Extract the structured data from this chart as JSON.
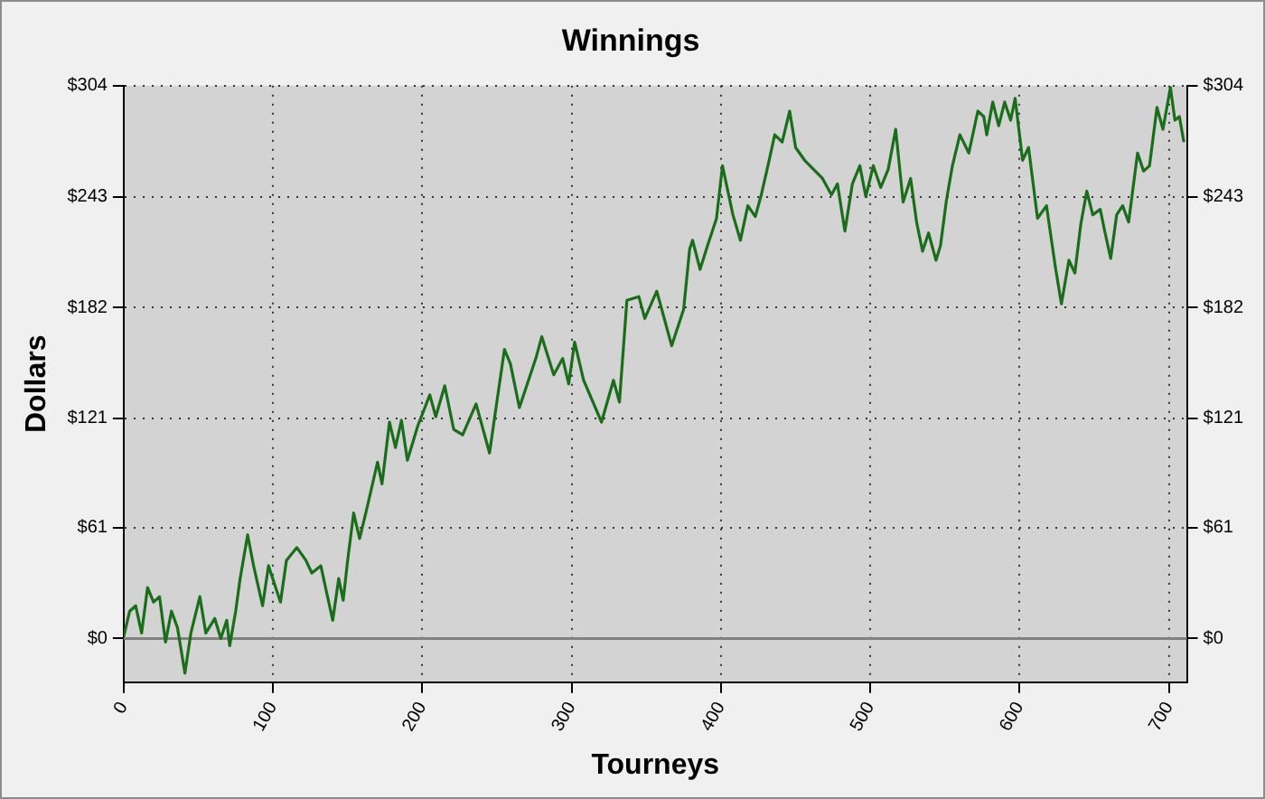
{
  "chart_data": {
    "type": "line",
    "title": "Winnings",
    "xlabel": "Tourneys",
    "ylabel": "Dollars",
    "x": [
      0,
      4,
      8,
      12,
      16,
      20,
      24,
      28,
      32,
      36,
      41,
      45,
      51,
      55,
      61,
      65,
      69,
      71,
      75,
      78,
      83,
      87,
      93,
      97,
      105,
      109,
      116,
      122,
      126,
      132,
      140,
      144,
      147,
      150,
      154,
      158,
      163,
      170,
      173,
      178,
      182,
      186,
      190,
      197,
      205,
      209,
      215,
      221,
      227,
      236,
      245,
      249,
      255,
      259,
      265,
      276,
      280,
      288,
      294,
      298,
      302,
      308,
      320,
      328,
      332,
      337,
      345,
      349,
      357,
      367,
      375,
      379,
      381,
      386,
      391,
      397,
      401,
      408,
      413,
      418,
      423,
      427,
      432,
      436,
      441,
      446,
      450,
      456,
      462,
      468,
      474,
      478,
      483,
      488,
      493,
      497,
      502,
      507,
      512,
      517,
      522,
      527,
      531,
      535,
      539,
      544,
      547,
      551,
      555,
      560,
      566,
      572,
      576,
      578,
      582,
      586,
      590,
      594,
      597,
      602,
      606,
      612,
      618,
      624,
      628,
      633,
      637,
      641,
      645,
      649,
      654,
      657,
      661,
      665,
      669,
      673,
      679,
      683,
      687,
      692,
      696,
      701,
      704,
      707,
      710
    ],
    "series": [
      {
        "color": "#1a6e1a",
        "values": [
          1,
          15,
          18,
          3,
          28,
          20,
          23,
          -2,
          15,
          6,
          -19,
          3,
          23,
          3,
          11,
          0,
          10,
          -4,
          15,
          33,
          57,
          40,
          18,
          40,
          20,
          43,
          50,
          43,
          36,
          40,
          10,
          33,
          21,
          43,
          69,
          55,
          72,
          97,
          85,
          119,
          105,
          120,
          98,
          117,
          134,
          122,
          139,
          115,
          112,
          129,
          102,
          125,
          159,
          151,
          127,
          154,
          166,
          145,
          154,
          140,
          163,
          142,
          119,
          142,
          130,
          186,
          188,
          176,
          191,
          161,
          181,
          214,
          219,
          203,
          216,
          231,
          260,
          233,
          219,
          238,
          232,
          244,
          262,
          277,
          273,
          290,
          270,
          263,
          258,
          253,
          244,
          250,
          224,
          250,
          260,
          243,
          260,
          248,
          258,
          280,
          240,
          253,
          229,
          213,
          223,
          208,
          216,
          241,
          260,
          277,
          267,
          290,
          287,
          277,
          295,
          282,
          295,
          285,
          297,
          263,
          270,
          231,
          238,
          204,
          184,
          208,
          201,
          228,
          246,
          233,
          236,
          224,
          209,
          233,
          238,
          229,
          267,
          257,
          260,
          292,
          280,
          303,
          285,
          287,
          273
        ]
      }
    ],
    "xlim": [
      0,
      712
    ],
    "xticks": [
      0,
      100,
      200,
      300,
      400,
      500,
      600,
      700
    ],
    "ylim": [
      -24,
      304
    ],
    "yticks": [
      {
        "value": 0,
        "label": "$0"
      },
      {
        "value": 61,
        "label": "$61"
      },
      {
        "value": 121,
        "label": "$121"
      },
      {
        "value": 182,
        "label": "$182"
      },
      {
        "value": 243,
        "label": "$243"
      },
      {
        "value": 304,
        "label": "$304"
      }
    ],
    "y2lim": [
      -24,
      304
    ],
    "y2ticks": [
      {
        "value": 0,
        "label": "$0"
      },
      {
        "value": 61,
        "label": "$61"
      },
      {
        "value": 121,
        "label": "$121"
      },
      {
        "value": 182,
        "label": "$182"
      },
      {
        "value": 243,
        "label": "$243"
      },
      {
        "value": 304,
        "label": "$304"
      }
    ],
    "ref_lines": [
      {
        "axis": "y",
        "value": 0,
        "color": "#808080"
      }
    ],
    "grid": true,
    "legend": false,
    "marker": "none",
    "line_style": "solid"
  }
}
